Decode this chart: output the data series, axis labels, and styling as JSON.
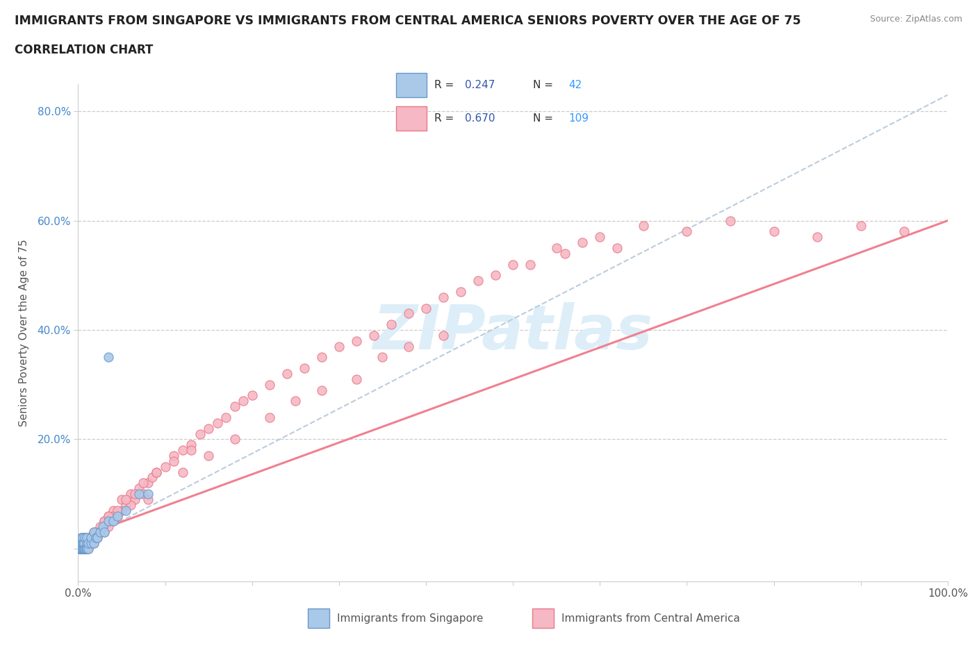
{
  "title": "IMMIGRANTS FROM SINGAPORE VS IMMIGRANTS FROM CENTRAL AMERICA SENIORS POVERTY OVER THE AGE OF 75",
  "subtitle": "CORRELATION CHART",
  "source": "Source: ZipAtlas.com",
  "ylabel": "Seniors Poverty Over the Age of 75",
  "xlim": [
    0.0,
    1.0
  ],
  "ylim": [
    -0.06,
    0.85
  ],
  "singapore_color": "#aac8e8",
  "singapore_edge": "#6699cc",
  "ca_color": "#f5b8c4",
  "ca_edge": "#e87888",
  "singapore_trend_color": "#bbccdd",
  "ca_trend_color": "#f08090",
  "legend_R_color": "#3355aa",
  "legend_N_color": "#3399ff",
  "watermark_color": "#ddeef8",
  "title_color": "#222222",
  "source_color": "#888888",
  "axis_label_color": "#555555",
  "yticklabel_color": "#4488cc",
  "grid_color": "#cccccc",
  "singapore_x": [
    0.001,
    0.002,
    0.002,
    0.003,
    0.003,
    0.003,
    0.004,
    0.004,
    0.004,
    0.005,
    0.005,
    0.005,
    0.005,
    0.006,
    0.006,
    0.007,
    0.007,
    0.008,
    0.008,
    0.009,
    0.009,
    0.01,
    0.01,
    0.01,
    0.012,
    0.012,
    0.015,
    0.015,
    0.018,
    0.018,
    0.02,
    0.022,
    0.025,
    0.028,
    0.03,
    0.035,
    0.04,
    0.045,
    0.055,
    0.07,
    0.08,
    0.035
  ],
  "singapore_y": [
    0.0,
    0.0,
    0.0,
    0.0,
    0.0,
    0.01,
    0.0,
    0.0,
    0.02,
    0.0,
    0.0,
    0.01,
    0.02,
    0.0,
    0.01,
    0.0,
    0.01,
    0.0,
    0.02,
    0.0,
    0.0,
    0.01,
    0.0,
    0.02,
    0.0,
    0.01,
    0.01,
    0.02,
    0.01,
    0.03,
    0.02,
    0.02,
    0.03,
    0.04,
    0.03,
    0.05,
    0.05,
    0.06,
    0.07,
    0.1,
    0.1,
    0.35
  ],
  "ca_x": [
    0.001,
    0.002,
    0.003,
    0.003,
    0.004,
    0.004,
    0.005,
    0.005,
    0.006,
    0.006,
    0.007,
    0.008,
    0.008,
    0.009,
    0.009,
    0.01,
    0.01,
    0.01,
    0.012,
    0.012,
    0.015,
    0.015,
    0.018,
    0.018,
    0.02,
    0.022,
    0.025,
    0.028,
    0.03,
    0.03,
    0.035,
    0.035,
    0.04,
    0.04,
    0.045,
    0.05,
    0.05,
    0.055,
    0.06,
    0.065,
    0.07,
    0.075,
    0.08,
    0.085,
    0.09,
    0.1,
    0.11,
    0.12,
    0.13,
    0.14,
    0.15,
    0.16,
    0.17,
    0.18,
    0.19,
    0.2,
    0.22,
    0.24,
    0.26,
    0.28,
    0.3,
    0.32,
    0.34,
    0.36,
    0.38,
    0.4,
    0.42,
    0.44,
    0.46,
    0.5,
    0.55,
    0.6,
    0.65,
    0.7,
    0.75,
    0.8,
    0.85,
    0.9,
    0.95,
    0.48,
    0.52,
    0.56,
    0.58,
    0.62,
    0.35,
    0.38,
    0.25,
    0.28,
    0.32,
    0.42,
    0.18,
    0.22,
    0.15,
    0.12,
    0.08,
    0.06,
    0.04,
    0.025,
    0.015,
    0.02,
    0.03,
    0.035,
    0.045,
    0.055,
    0.065,
    0.075,
    0.09,
    0.11,
    0.13
  ],
  "ca_y": [
    0.0,
    0.0,
    0.0,
    0.01,
    0.0,
    0.02,
    0.0,
    0.01,
    0.0,
    0.02,
    0.01,
    0.0,
    0.02,
    0.01,
    0.0,
    0.0,
    0.01,
    0.02,
    0.0,
    0.01,
    0.01,
    0.02,
    0.01,
    0.03,
    0.02,
    0.02,
    0.03,
    0.04,
    0.03,
    0.05,
    0.04,
    0.06,
    0.05,
    0.07,
    0.06,
    0.07,
    0.09,
    0.08,
    0.1,
    0.09,
    0.11,
    0.1,
    0.12,
    0.13,
    0.14,
    0.15,
    0.17,
    0.18,
    0.19,
    0.21,
    0.22,
    0.23,
    0.24,
    0.26,
    0.27,
    0.28,
    0.3,
    0.32,
    0.33,
    0.35,
    0.37,
    0.38,
    0.39,
    0.41,
    0.43,
    0.44,
    0.46,
    0.47,
    0.49,
    0.52,
    0.55,
    0.57,
    0.59,
    0.58,
    0.6,
    0.58,
    0.57,
    0.59,
    0.58,
    0.5,
    0.52,
    0.54,
    0.56,
    0.55,
    0.35,
    0.37,
    0.27,
    0.29,
    0.31,
    0.39,
    0.2,
    0.24,
    0.17,
    0.14,
    0.09,
    0.08,
    0.06,
    0.04,
    0.02,
    0.03,
    0.05,
    0.06,
    0.07,
    0.09,
    0.1,
    0.12,
    0.14,
    0.16,
    0.18
  ]
}
